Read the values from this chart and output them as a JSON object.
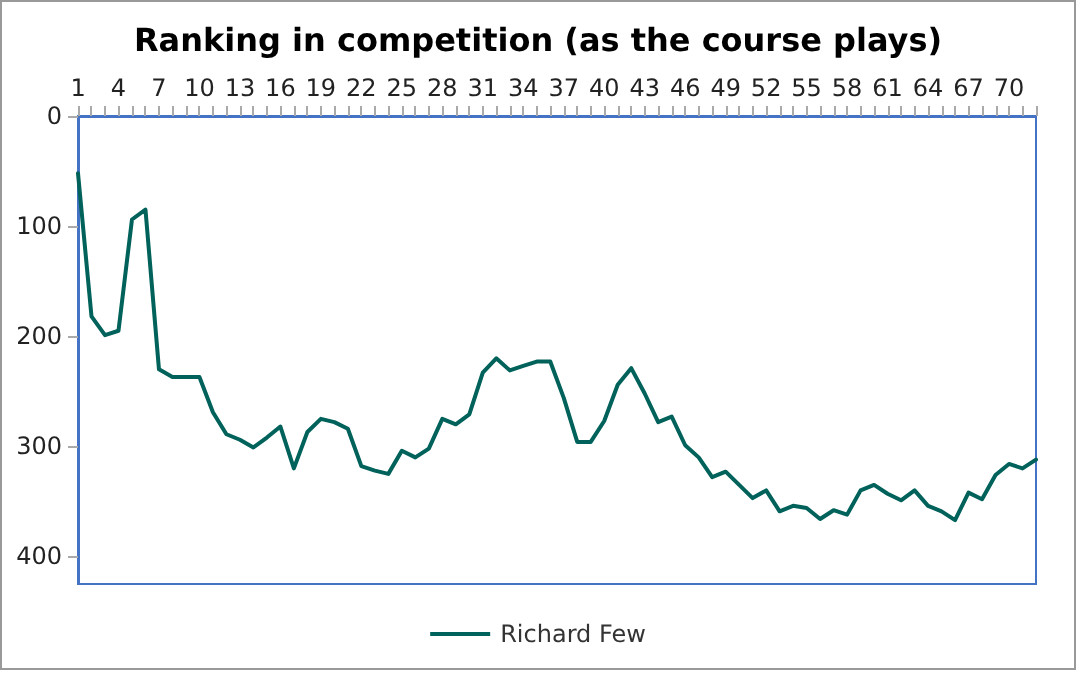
{
  "chart_data": {
    "type": "line",
    "title": "Ranking in competition (as the course plays)",
    "categories": [
      "1",
      null,
      null,
      "4",
      null,
      null,
      "7",
      null,
      null,
      "10",
      null,
      null,
      "13",
      null,
      null,
      "16",
      null,
      null,
      "19",
      null,
      null,
      "22",
      null,
      null,
      "25",
      null,
      null,
      "28",
      null,
      null,
      "31",
      null,
      null,
      "34",
      null,
      null,
      "37",
      null,
      null,
      "40",
      null,
      null,
      "43",
      null,
      null,
      "46",
      null,
      null,
      "49",
      null,
      null,
      "52",
      null,
      null,
      "55",
      null,
      null,
      "58",
      null,
      null,
      "61",
      null,
      null,
      "64",
      null,
      null,
      "67",
      null,
      null,
      "70",
      null,
      null
    ],
    "series": [
      {
        "name": "Richard Few",
        "color": "#00625a",
        "values": [
          52,
          182,
          199,
          195,
          94,
          85,
          230,
          237,
          237,
          237,
          269,
          289,
          294,
          301,
          292,
          282,
          320,
          287,
          275,
          278,
          284,
          318,
          322,
          325,
          304,
          310,
          302,
          275,
          280,
          271,
          233,
          220,
          231,
          227,
          223,
          223,
          256,
          296,
          296,
          277,
          244,
          229,
          252,
          278,
          273,
          299,
          310,
          328,
          323,
          335,
          347,
          340,
          359,
          354,
          356,
          366,
          358,
          362,
          340,
          335,
          343,
          349,
          340,
          354,
          359,
          367,
          342,
          348,
          326,
          316,
          320,
          312
        ]
      }
    ],
    "ylim": [
      425,
      0
    ],
    "yticks": [
      0,
      100,
      200,
      300,
      400
    ],
    "grid": false,
    "legend": "bottom",
    "marker": "none",
    "line_style": "solid"
  }
}
